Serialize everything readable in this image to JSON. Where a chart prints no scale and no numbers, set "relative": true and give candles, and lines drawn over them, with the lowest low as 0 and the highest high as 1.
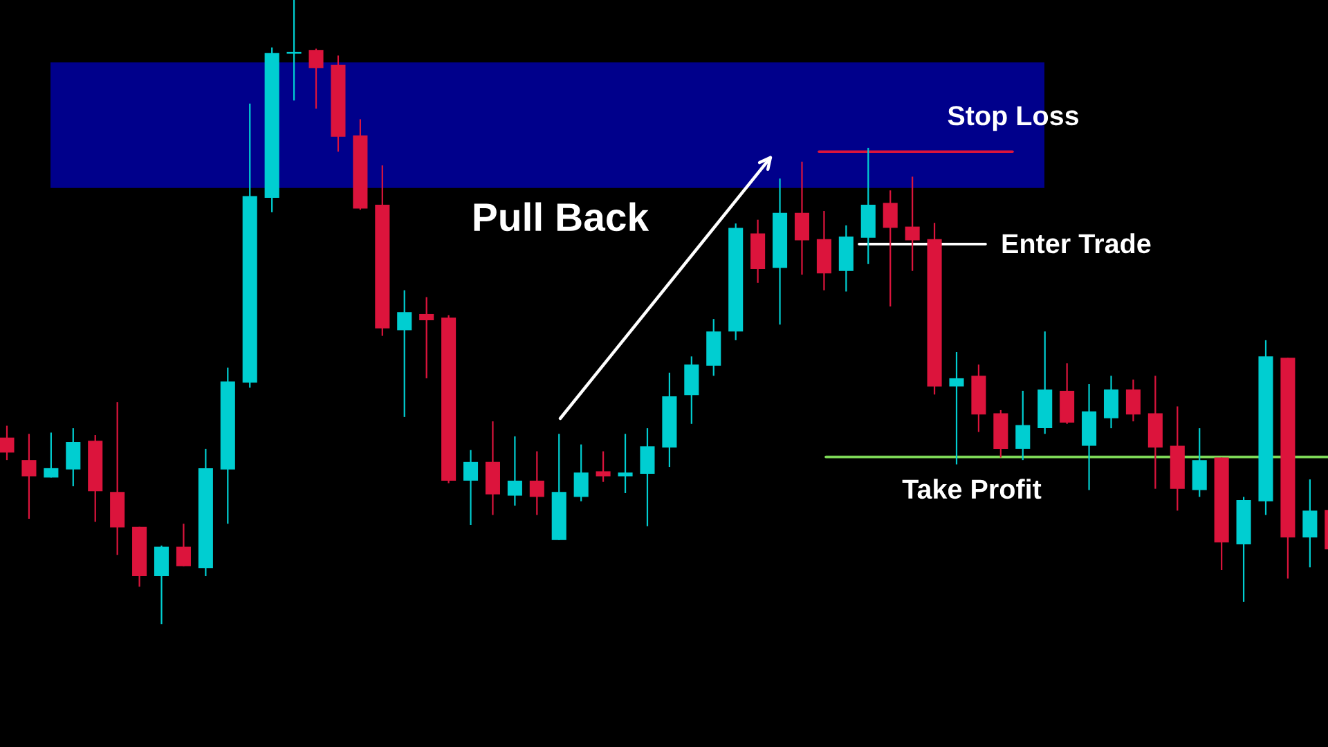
{
  "chart_data": {
    "type": "candlestick",
    "relative": true,
    "categories": [
      null,
      null,
      null,
      null,
      null,
      null,
      null,
      null,
      null,
      null,
      null,
      null,
      null,
      null,
      null,
      null,
      null,
      null,
      null,
      null,
      null,
      null,
      null,
      null,
      null,
      null,
      null,
      null,
      null,
      null,
      null,
      null,
      null,
      null,
      null,
      null,
      null,
      null,
      null,
      null,
      null,
      null,
      null,
      null,
      null,
      null,
      null,
      null,
      null,
      null,
      null,
      null,
      null,
      null,
      null,
      null,
      null,
      null,
      null,
      null,
      null
    ],
    "ohlc": [
      [
        0.299,
        0.318,
        0.263,
        0.275
      ],
      [
        0.263,
        0.305,
        0.169,
        0.237
      ],
      [
        0.235,
        0.307,
        0.235,
        0.25
      ],
      [
        0.248,
        0.314,
        0.221,
        0.292
      ],
      [
        0.294,
        0.303,
        0.164,
        0.213
      ],
      [
        0.212,
        0.356,
        0.111,
        0.155
      ],
      [
        0.156,
        0.156,
        0.06,
        0.077
      ],
      [
        0.077,
        0.126,
        0.0,
        0.124
      ],
      [
        0.124,
        0.161,
        0.093,
        0.093
      ],
      [
        0.09,
        0.281,
        0.077,
        0.25
      ],
      [
        0.248,
        0.411,
        0.161,
        0.389
      ],
      [
        0.387,
        0.834,
        0.379,
        0.686
      ],
      [
        0.683,
        0.924,
        0.66,
        0.915
      ],
      [
        0.914,
        1.0,
        0.839,
        0.917
      ],
      [
        0.92,
        0.922,
        0.826,
        0.891
      ],
      [
        0.896,
        0.911,
        0.757,
        0.781
      ],
      [
        0.783,
        0.809,
        0.664,
        0.666
      ],
      [
        0.672,
        0.735,
        0.462,
        0.474
      ],
      [
        0.471,
        0.535,
        0.332,
        0.5
      ],
      [
        0.497,
        0.524,
        0.394,
        0.487
      ],
      [
        0.491,
        0.495,
        0.226,
        0.23
      ],
      [
        0.23,
        0.279,
        0.159,
        0.26
      ],
      [
        0.26,
        0.325,
        0.175,
        0.208
      ],
      [
        0.206,
        0.301,
        0.19,
        0.23
      ],
      [
        0.23,
        0.277,
        0.175,
        0.204
      ],
      [
        0.135,
        0.305,
        0.135,
        0.212
      ],
      [
        0.204,
        0.288,
        0.197,
        0.243
      ],
      [
        0.245,
        0.277,
        0.228,
        0.237
      ],
      [
        0.237,
        0.305,
        0.21,
        0.243
      ],
      [
        0.241,
        0.314,
        0.157,
        0.285
      ],
      [
        0.283,
        0.403,
        0.252,
        0.365
      ],
      [
        0.367,
        0.429,
        0.321,
        0.416
      ],
      [
        0.414,
        0.489,
        0.398,
        0.469
      ],
      [
        0.469,
        0.642,
        0.455,
        0.635
      ],
      [
        0.626,
        0.648,
        0.547,
        0.569
      ],
      [
        0.571,
        0.714,
        0.48,
        0.659
      ],
      [
        0.659,
        0.741,
        0.56,
        0.615
      ],
      [
        0.617,
        0.662,
        0.535,
        0.562
      ],
      [
        0.566,
        0.639,
        0.533,
        0.621
      ],
      [
        0.619,
        0.763,
        0.577,
        0.672
      ],
      [
        0.675,
        0.695,
        0.509,
        0.635
      ],
      [
        0.637,
        0.717,
        0.566,
        0.615
      ],
      [
        0.617,
        0.643,
        0.368,
        0.381
      ],
      [
        0.381,
        0.436,
        0.256,
        0.394
      ],
      [
        0.398,
        0.416,
        0.308,
        0.336
      ],
      [
        0.338,
        0.343,
        0.267,
        0.281
      ],
      [
        0.281,
        0.374,
        0.263,
        0.319
      ],
      [
        0.314,
        0.469,
        0.305,
        0.376
      ],
      [
        0.374,
        0.418,
        0.321,
        0.323
      ],
      [
        0.286,
        0.385,
        0.215,
        0.341
      ],
      [
        0.33,
        0.398,
        0.314,
        0.376
      ],
      [
        0.376,
        0.392,
        0.325,
        0.336
      ],
      [
        0.338,
        0.398,
        0.217,
        0.283
      ],
      [
        0.286,
        0.349,
        0.182,
        0.217
      ],
      [
        0.215,
        0.314,
        0.204,
        0.263
      ],
      [
        0.267,
        0.267,
        0.087,
        0.131
      ],
      [
        0.128,
        0.204,
        0.036,
        0.199
      ],
      [
        0.197,
        0.455,
        0.175,
        0.429
      ],
      [
        0.427,
        0.427,
        0.073,
        0.139
      ],
      [
        0.139,
        0.232,
        0.091,
        0.182
      ],
      [
        0.183,
        0.183,
        0.12,
        0.12
      ]
    ],
    "colors": [
      "#dc143c",
      "#dc143c",
      "#00ced1",
      "#00ced1",
      "#dc143c",
      "#dc143c",
      "#dc143c",
      "#00ced1",
      "#dc143c",
      "#00ced1",
      "#00ced1",
      "#00ced1",
      "#00ced1",
      "#00ced1",
      "#dc143c",
      "#dc143c",
      "#dc143c",
      "#dc143c",
      "#00ced1",
      "#dc143c",
      "#dc143c",
      "#00ced1",
      "#dc143c",
      "#00ced1",
      "#dc143c",
      "#00ced1",
      "#00ced1",
      "#dc143c",
      "#00ced1",
      "#00ced1",
      "#00ced1",
      "#00ced1",
      "#00ced1",
      "#00ced1",
      "#dc143c",
      "#00ced1",
      "#dc143c",
      "#dc143c",
      "#00ced1",
      "#00ced1",
      "#dc143c",
      "#dc143c",
      "#dc143c",
      "#00ced1",
      "#dc143c",
      "#dc143c",
      "#00ced1",
      "#00ced1",
      "#dc143c",
      "#00ced1",
      "#00ced1",
      "#dc143c",
      "#dc143c",
      "#dc143c",
      "#00ced1",
      "#dc143c",
      "#00ced1",
      "#00ced1",
      "#dc143c",
      "#00ced1",
      "#dc143c"
    ],
    "bands": [
      {
        "axis": "y",
        "from": 0.699,
        "to": 0.9,
        "color": "#00008b"
      }
    ],
    "ref_lines": [
      {
        "axis": "y",
        "value": 0.757,
        "label": "Stop Loss",
        "color": "#dc143c"
      },
      {
        "axis": "y",
        "value": 0.609,
        "label": "Enter Trade",
        "color": "#ffffff"
      },
      {
        "axis": "y",
        "value": 0.268,
        "label": "Take Profit",
        "color": "#7ed957"
      }
    ],
    "annotations": [
      "Pull Back"
    ]
  }
}
